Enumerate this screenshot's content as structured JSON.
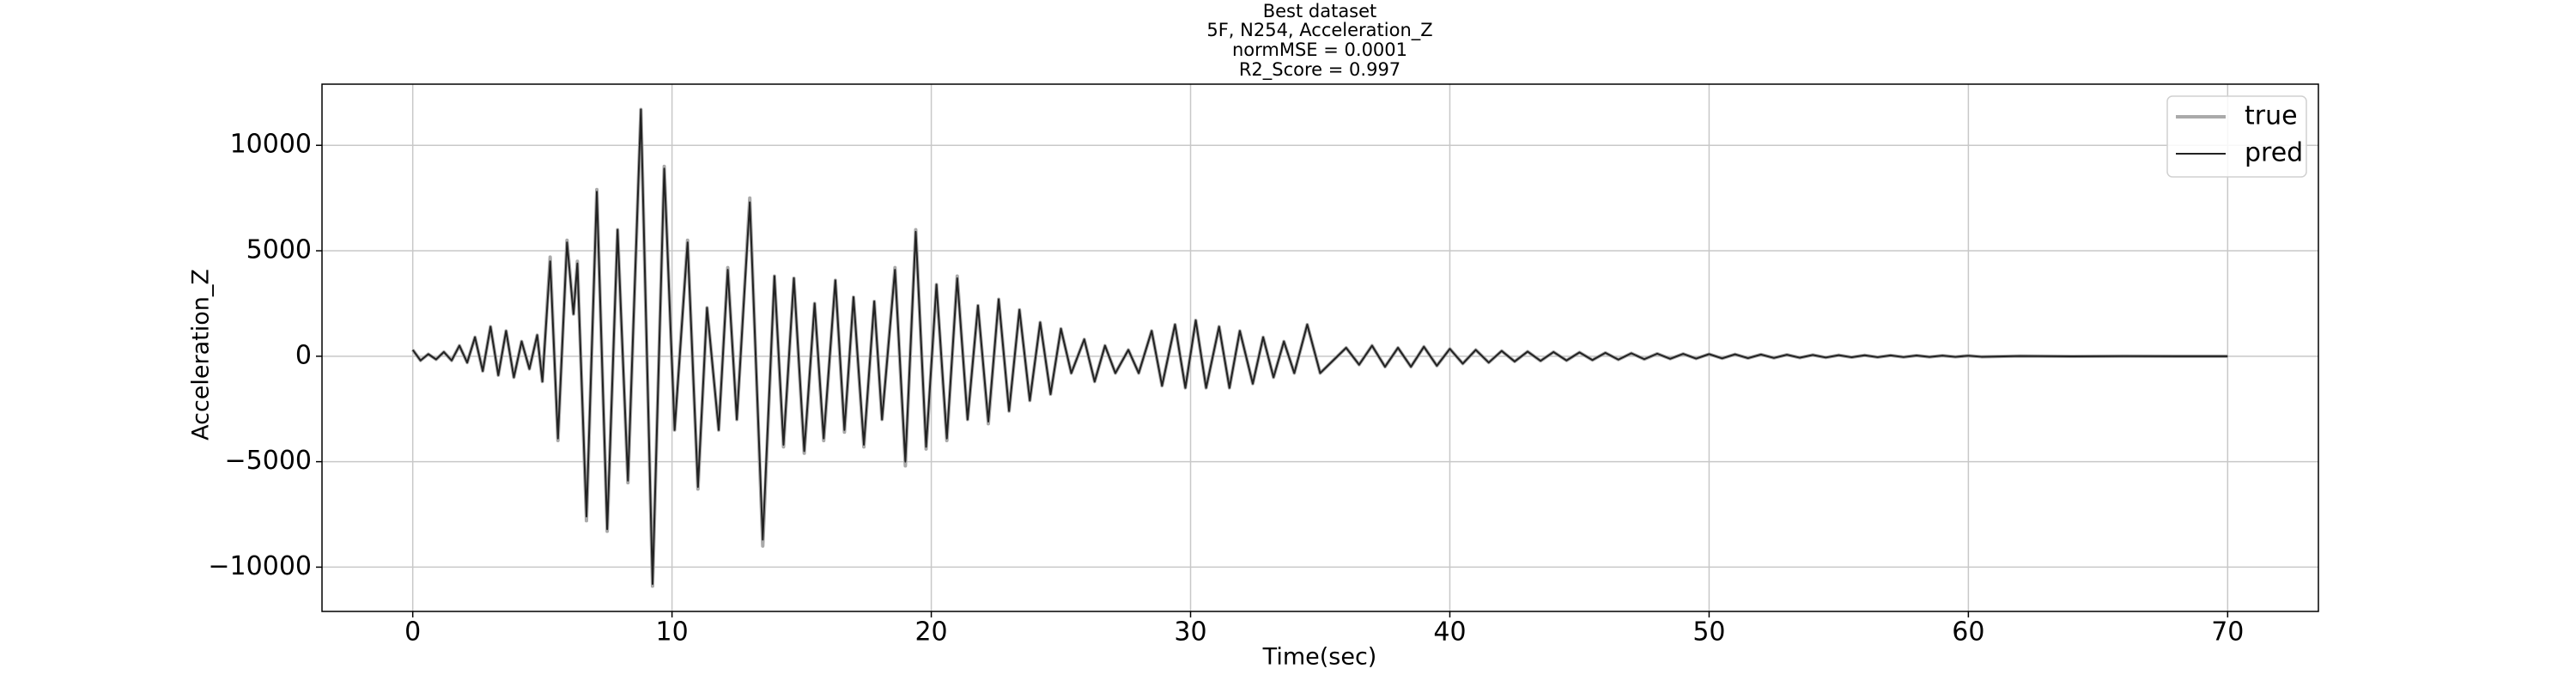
{
  "chart_data": {
    "type": "line",
    "title": "Best dataset",
    "subtitle": [
      "5F, N254, Acceleration_Z",
      "normMSE = 0.0001",
      "R2_Score = 0.997"
    ],
    "x_label": "Time(sec)",
    "y_label": "Acceleration_Z",
    "x": [
      0.0,
      0.3,
      0.6,
      0.9,
      1.2,
      1.5,
      1.8,
      2.1,
      2.4,
      2.7,
      3.0,
      3.3,
      3.6,
      3.9,
      4.2,
      4.5,
      4.8,
      5.0,
      5.3,
      5.6,
      5.95,
      6.2,
      6.35,
      6.7,
      7.1,
      7.5,
      7.9,
      8.3,
      8.8,
      9.25,
      9.7,
      10.1,
      10.6,
      11.0,
      11.35,
      11.8,
      12.15,
      12.5,
      13.0,
      13.5,
      13.95,
      14.3,
      14.7,
      15.1,
      15.5,
      15.85,
      16.3,
      16.65,
      17.0,
      17.4,
      17.8,
      18.1,
      18.6,
      19.0,
      19.4,
      19.8,
      20.2,
      20.6,
      21.0,
      21.4,
      21.8,
      22.2,
      22.6,
      23.0,
      23.4,
      23.8,
      24.2,
      24.6,
      25.0,
      25.4,
      25.9,
      26.3,
      26.7,
      27.1,
      27.6,
      28.0,
      28.5,
      28.9,
      29.4,
      29.8,
      30.2,
      30.6,
      31.1,
      31.5,
      31.9,
      32.4,
      32.8,
      33.2,
      33.6,
      34.0,
      34.5,
      35.0,
      35.5,
      36.0,
      36.5,
      37.0,
      37.5,
      38.0,
      38.5,
      39.0,
      39.5,
      40.0,
      40.5,
      41.0,
      41.5,
      42.0,
      42.5,
      43.0,
      43.5,
      44.0,
      44.5,
      45.0,
      45.5,
      46.0,
      46.5,
      47.0,
      47.5,
      48.0,
      48.5,
      49.0,
      49.5,
      50.0,
      50.5,
      51.0,
      51.5,
      52.0,
      52.5,
      53.0,
      53.5,
      54.0,
      54.5,
      55.0,
      55.5,
      56.0,
      56.5,
      57.0,
      57.5,
      58.0,
      58.5,
      59.0,
      59.5,
      60.0,
      60.5,
      62.0,
      64.0,
      66.0,
      68.0,
      70.0
    ],
    "series": [
      {
        "name": "true",
        "color": "#aaaaaa",
        "values": [
          300,
          -200,
          100,
          -150,
          200,
          -200,
          500,
          -300,
          900,
          -700,
          1400,
          -900,
          1200,
          -1000,
          700,
          -600,
          1000,
          -1200,
          4700,
          -4000,
          5500,
          2000,
          4500,
          -7800,
          7900,
          -8300,
          6000,
          -6000,
          11700,
          -10900,
          9000,
          -3500,
          5500,
          -6300,
          2300,
          -3500,
          4200,
          -3000,
          7500,
          -9000,
          3800,
          -4300,
          3700,
          -4600,
          2500,
          -4000,
          3600,
          -3600,
          2800,
          -4300,
          2600,
          -3000,
          4200,
          -5200,
          6000,
          -4400,
          3400,
          -4000,
          3800,
          -3000,
          2400,
          -3200,
          2700,
          -2600,
          2200,
          -2100,
          1600,
          -1800,
          1300,
          -800,
          800,
          -1200,
          500,
          -800,
          300,
          -800,
          1200,
          -1400,
          1500,
          -1500,
          1700,
          -1500,
          1400,
          -1500,
          1200,
          -1300,
          900,
          -1000,
          700,
          -800,
          1500,
          -800,
          -200,
          400,
          -400,
          500,
          -500,
          400,
          -500,
          450,
          -450,
          350,
          -350,
          300,
          -300,
          250,
          -250,
          220,
          -220,
          200,
          -200,
          180,
          -180,
          160,
          -160,
          140,
          -140,
          120,
          -120,
          110,
          -110,
          100,
          -100,
          90,
          -90,
          80,
          -80,
          70,
          -70,
          60,
          -60,
          50,
          -50,
          45,
          -45,
          40,
          -40,
          35,
          -35,
          30,
          -30,
          25,
          -25,
          10,
          -5,
          5,
          0,
          0
        ]
      },
      {
        "name": "pred",
        "color": "#222222",
        "values": [
          300,
          -200,
          100,
          -150,
          200,
          -200,
          500,
          -300,
          900,
          -700,
          1400,
          -900,
          1200,
          -1000,
          700,
          -600,
          1000,
          -1200,
          4500,
          -3900,
          5400,
          2000,
          4400,
          -7600,
          7800,
          -8200,
          6000,
          -5900,
          11700,
          -10800,
          8900,
          -3500,
          5400,
          -6200,
          2300,
          -3500,
          4100,
          -3000,
          7300,
          -8700,
          3800,
          -4200,
          3700,
          -4500,
          2500,
          -3900,
          3600,
          -3500,
          2800,
          -4200,
          2600,
          -3000,
          4100,
          -5000,
          5900,
          -4300,
          3400,
          -3900,
          3700,
          -3000,
          2400,
          -3100,
          2700,
          -2600,
          2200,
          -2100,
          1600,
          -1800,
          1300,
          -800,
          800,
          -1200,
          500,
          -800,
          300,
          -800,
          1200,
          -1400,
          1500,
          -1500,
          1700,
          -1500,
          1400,
          -1500,
          1200,
          -1300,
          900,
          -1000,
          700,
          -800,
          1500,
          -800,
          -200,
          400,
          -400,
          500,
          -500,
          400,
          -500,
          450,
          -450,
          350,
          -350,
          300,
          -300,
          250,
          -250,
          220,
          -220,
          200,
          -200,
          180,
          -180,
          160,
          -160,
          140,
          -140,
          120,
          -120,
          110,
          -110,
          100,
          -100,
          90,
          -90,
          80,
          -80,
          70,
          -70,
          60,
          -60,
          50,
          -50,
          45,
          -45,
          40,
          -40,
          35,
          -35,
          30,
          -30,
          25,
          -25,
          10,
          -5,
          5,
          0,
          0
        ]
      }
    ],
    "xlim": [
      -3.5,
      73.5
    ],
    "xticks": [
      0,
      10,
      20,
      30,
      40,
      50,
      60,
      70
    ],
    "ylim": [
      -12100,
      12900
    ],
    "yticks": [
      {
        "value": -10000,
        "label": "−10000"
      },
      {
        "value": -5000,
        "label": "−5000"
      },
      0,
      5000,
      10000
    ],
    "grid": true,
    "legend": "upper right"
  }
}
